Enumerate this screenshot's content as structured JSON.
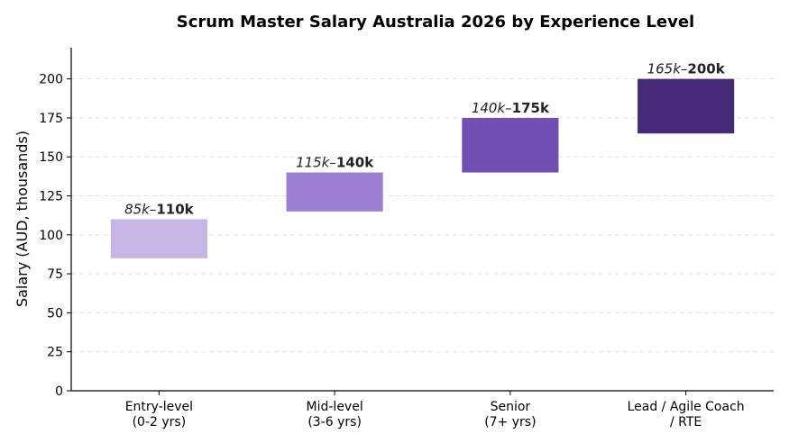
{
  "chart_data": {
    "type": "bar",
    "title": "Scrum Master Salary Australia 2026 by Experience Level",
    "ylabel": "Salary (AUD, thousands)",
    "xlabel": "",
    "ylim": [
      0,
      220
    ],
    "yticks": [
      0,
      25,
      50,
      75,
      100,
      125,
      150,
      175,
      200
    ],
    "grid": true,
    "categories": [
      [
        "Entry-level",
        "(0-2 yrs)"
      ],
      [
        "Mid-level",
        "(3-6 yrs)"
      ],
      [
        "Senior",
        "(7+ yrs)"
      ],
      [
        "Lead / Agile Coach",
        "/ RTE"
      ]
    ],
    "ranges": [
      {
        "low": 85,
        "high": 110,
        "low_label": "85k",
        "high_label": "110k",
        "color": "#c7b5e6"
      },
      {
        "low": 115,
        "high": 140,
        "low_label": "115k",
        "high_label": "140k",
        "color": "#9b80d6"
      },
      {
        "low": 140,
        "high": 175,
        "low_label": "140k",
        "high_label": "175k",
        "color": "#704eb2"
      },
      {
        "low": 165,
        "high": 200,
        "low_label": "165k",
        "high_label": "200k",
        "color": "#452a78"
      }
    ]
  }
}
